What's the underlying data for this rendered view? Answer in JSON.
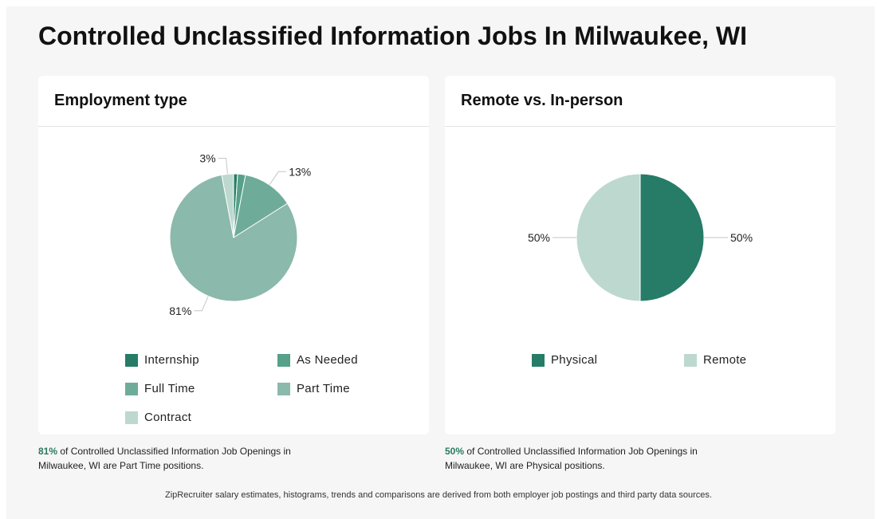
{
  "page": {
    "title": "Controlled Unclassified Information Jobs In Milwaukee, WI",
    "footer": "ZipRecruiter salary estimates, histograms, trends and comparisons are derived from both employer job postings and third party data sources."
  },
  "employment_card": {
    "title": "Employment type",
    "caption_highlight": "81%",
    "caption_text": " of Controlled Unclassified Information Job Openings in Milwaukee, WI are Part Time positions."
  },
  "remote_card": {
    "title": "Remote vs. In-person",
    "caption_highlight": "50%",
    "caption_text": " of Controlled Unclassified Information Job Openings in Milwaukee, WI are Physical positions."
  },
  "chart_data": [
    {
      "type": "pie",
      "title": "Employment type",
      "categories": [
        "Internship",
        "As Needed",
        "Full Time",
        "Part Time",
        "Contract"
      ],
      "values": [
        1,
        2,
        13,
        81,
        3
      ],
      "labels": [
        "",
        "",
        "13%",
        "81%",
        "3%"
      ],
      "colors": [
        "#267c67",
        "#57a089",
        "#6fab99",
        "#8bb9ab",
        "#bdd8cf"
      ],
      "legend": "bottom"
    },
    {
      "type": "pie",
      "title": "Remote vs. In-person",
      "categories": [
        "Physical",
        "Remote"
      ],
      "values": [
        50,
        50
      ],
      "labels": [
        "50%",
        "50%"
      ],
      "colors": [
        "#267c67",
        "#bdd8cf"
      ],
      "legend": "bottom"
    }
  ]
}
